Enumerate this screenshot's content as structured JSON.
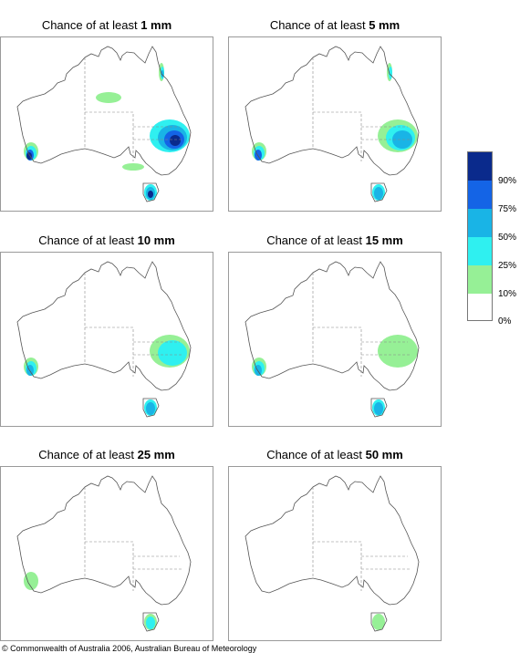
{
  "panels": [
    {
      "prefix": "Chance of at least ",
      "amount": "1 mm",
      "blobs": [
        {
          "region": "se-qld-nsw",
          "bins": [
            "25-50",
            "50-75",
            "75-90",
            ">90"
          ]
        },
        {
          "region": "central-nt",
          "bins": [
            "10-25"
          ]
        },
        {
          "region": "sw-wa",
          "bins": [
            "10-25",
            "25-50",
            "75-90",
            ">90"
          ]
        },
        {
          "region": "tasmania",
          "bins": [
            "25-50",
            "50-75",
            ">90"
          ]
        },
        {
          "region": "ne-qld-coast",
          "bins": [
            "10-25",
            "25-50",
            "50-75"
          ]
        },
        {
          "region": "sa-coast",
          "bins": [
            "10-25"
          ]
        }
      ]
    },
    {
      "prefix": "Chance of at least ",
      "amount": "5 mm",
      "blobs": [
        {
          "region": "se-qld-nsw",
          "bins": [
            "10-25",
            "25-50",
            "50-75"
          ]
        },
        {
          "region": "sw-wa",
          "bins": [
            "10-25",
            "25-50",
            "75-90"
          ]
        },
        {
          "region": "tasmania",
          "bins": [
            "25-50",
            "50-75"
          ]
        },
        {
          "region": "ne-qld-coast",
          "bins": [
            "10-25",
            "25-50"
          ]
        }
      ]
    },
    {
      "prefix": "Chance of at least ",
      "amount": "10 mm",
      "blobs": [
        {
          "region": "se-qld-nsw",
          "bins": [
            "10-25",
            "25-50"
          ]
        },
        {
          "region": "sw-wa",
          "bins": [
            "10-25",
            "25-50",
            "50-75"
          ]
        },
        {
          "region": "tasmania",
          "bins": [
            "25-50",
            "50-75"
          ]
        }
      ]
    },
    {
      "prefix": "Chance of at least ",
      "amount": "15 mm",
      "blobs": [
        {
          "region": "se-qld-nsw",
          "bins": [
            "10-25"
          ]
        },
        {
          "region": "sw-wa",
          "bins": [
            "10-25",
            "25-50",
            "50-75"
          ]
        },
        {
          "region": "tasmania",
          "bins": [
            "25-50",
            "50-75"
          ]
        }
      ]
    },
    {
      "prefix": "Chance of at least ",
      "amount": "25 mm",
      "blobs": [
        {
          "region": "sw-wa",
          "bins": [
            "10-25"
          ]
        },
        {
          "region": "tasmania",
          "bins": [
            "10-25",
            "25-50"
          ]
        }
      ]
    },
    {
      "prefix": "Chance of at least ",
      "amount": "50 mm",
      "blobs": [
        {
          "region": "tasmania",
          "bins": [
            "10-25"
          ]
        }
      ]
    }
  ],
  "legend": {
    "labels": [
      "90%",
      "75%",
      "50%",
      "25%",
      "10%",
      "0%"
    ],
    "bins": [
      {
        "range": ">90",
        "color": "#0a2a8c"
      },
      {
        "range": "75-90",
        "color": "#1464e6"
      },
      {
        "range": "50-75",
        "color": "#19b4e6"
      },
      {
        "range": "25-50",
        "color": "#2ff0f0"
      },
      {
        "range": "10-25",
        "color": "#96f096"
      },
      {
        "range": "0-10",
        "color": "#ffffff"
      }
    ]
  },
  "footer": "© Commonwealth of Australia 2006, Australian Bureau of Meteorology"
}
